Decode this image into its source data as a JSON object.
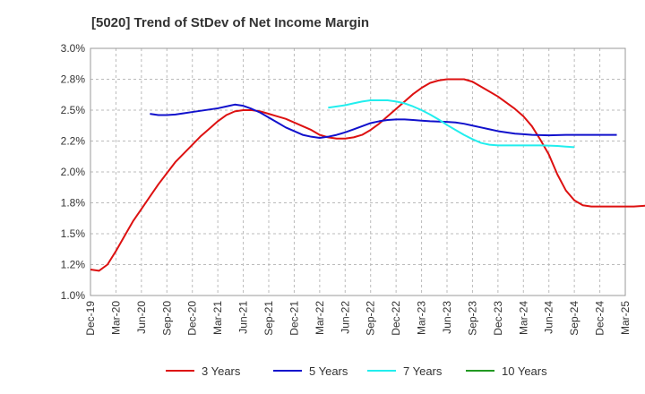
{
  "chart_data": {
    "type": "line",
    "title": "[5020]  Trend of StDev of Net Income Margin",
    "xlabel": "",
    "ylabel": "",
    "x_ticks": [
      "Dec-19",
      "Mar-20",
      "Jun-20",
      "Sep-20",
      "Dec-20",
      "Mar-21",
      "Jun-21",
      "Sep-21",
      "Dec-21",
      "Mar-22",
      "Jun-22",
      "Sep-22",
      "Dec-22",
      "Mar-23",
      "Jun-23",
      "Sep-23",
      "Dec-23",
      "Mar-24",
      "Jun-24",
      "Sep-24",
      "Dec-24",
      "Mar-25"
    ],
    "y_ticks": [
      "1.0%",
      "1.2%",
      "1.5%",
      "1.8%",
      "2.0%",
      "2.2%",
      "2.5%",
      "2.8%",
      "3.0%"
    ],
    "ylim": [
      1.0,
      3.0
    ],
    "grid": true,
    "legend_position": "bottom",
    "series": [
      {
        "name": "3 Years",
        "color": "#dd1111",
        "start_index": 0,
        "values": [
          1.21,
          1.2,
          1.25,
          1.36,
          1.48,
          1.6,
          1.7,
          1.8,
          1.9,
          1.99,
          2.08,
          2.15,
          2.22,
          2.29,
          2.35,
          2.41,
          2.46,
          2.49,
          2.5,
          2.5,
          2.49,
          2.47,
          2.45,
          2.43,
          2.4,
          2.37,
          2.34,
          2.3,
          2.28,
          2.27,
          2.27,
          2.28,
          2.3,
          2.34,
          2.39,
          2.45,
          2.51,
          2.57,
          2.63,
          2.68,
          2.72,
          2.74,
          2.75,
          2.75,
          2.75,
          2.73,
          2.69,
          2.65,
          2.61,
          2.56,
          2.51,
          2.45,
          2.37,
          2.26,
          2.14,
          1.98,
          1.85,
          1.77,
          1.73,
          1.72,
          1.72,
          1.72,
          1.72,
          1.72,
          1.72,
          1.725,
          1.73,
          1.73,
          1.725,
          1.71
        ]
      },
      {
        "name": "5 Years",
        "color": "#1111cc",
        "start_index": 7,
        "values": [
          2.47,
          2.46,
          2.46,
          2.465,
          2.475,
          2.485,
          2.495,
          2.505,
          2.515,
          2.53,
          2.545,
          2.535,
          2.51,
          2.48,
          2.44,
          2.4,
          2.36,
          2.33,
          2.3,
          2.285,
          2.275,
          2.285,
          2.3,
          2.32,
          2.345,
          2.37,
          2.395,
          2.41,
          2.42,
          2.425,
          2.425,
          2.42,
          2.415,
          2.41,
          2.408,
          2.405,
          2.4,
          2.39,
          2.375,
          2.36,
          2.345,
          2.33,
          2.32,
          2.31,
          2.305,
          2.3,
          2.298,
          2.296,
          2.298,
          2.3,
          2.3,
          2.3,
          2.3,
          2.3,
          2.3,
          2.3
        ]
      },
      {
        "name": "7 Years",
        "color": "#22eeee",
        "start_index": 28,
        "values": [
          2.52,
          2.53,
          2.54,
          2.555,
          2.57,
          2.58,
          2.58,
          2.58,
          2.57,
          2.555,
          2.53,
          2.5,
          2.465,
          2.425,
          2.38,
          2.34,
          2.3,
          2.265,
          2.235,
          2.22,
          2.215,
          2.215,
          2.215,
          2.215,
          2.215,
          2.215,
          2.213,
          2.21,
          2.205,
          2.2
        ]
      },
      {
        "name": "10 Years",
        "color": "#229922",
        "start_index": 0,
        "values": []
      }
    ]
  }
}
